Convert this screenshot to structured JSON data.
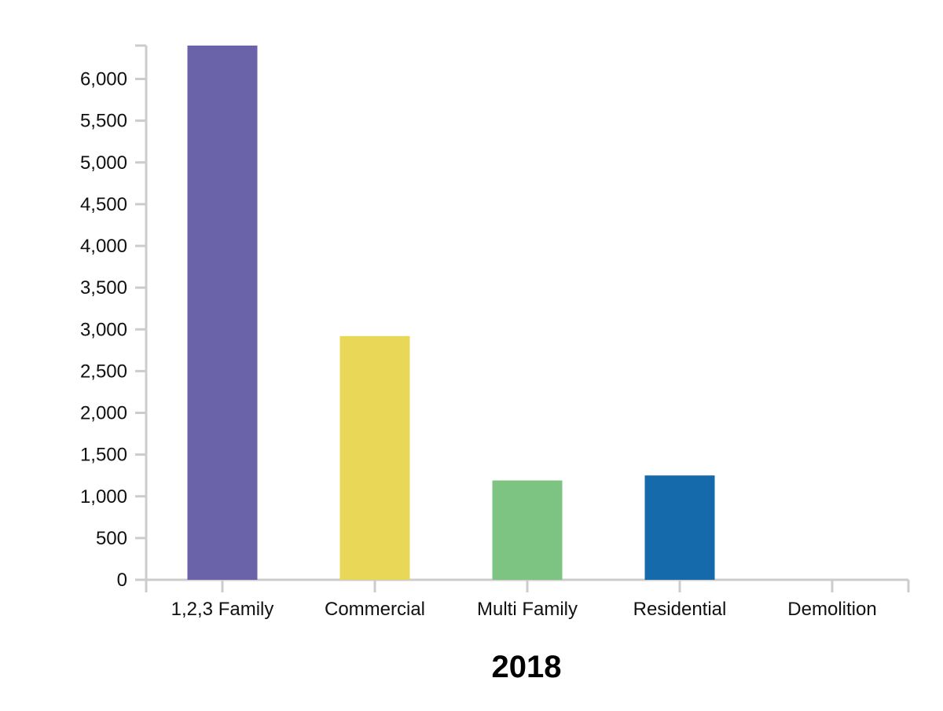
{
  "chart_data": {
    "type": "bar",
    "title": "",
    "xlabel": "2018",
    "ylabel": "",
    "categories": [
      "1,2,3 Family",
      "Commercial",
      "Multi Family",
      "Residential",
      "Demolition"
    ],
    "values": [
      6400,
      2920,
      1190,
      1250,
      0
    ],
    "colors": [
      "#6b63a9",
      "#e9d858",
      "#7dc483",
      "#156aac",
      "#7f7f7f"
    ],
    "ylim": [
      0,
      6400
    ],
    "yticks": [
      0,
      500,
      1000,
      1500,
      2000,
      2500,
      3000,
      3500,
      4000,
      4500,
      5000,
      5500,
      6000
    ],
    "ytick_labels": [
      "0",
      "500",
      "1,000",
      "1,500",
      "2,000",
      "2,500",
      "3,000",
      "3,500",
      "4,000",
      "4,500",
      "5,000",
      "5,500",
      "6,000"
    ],
    "grid": false,
    "legend": "none"
  }
}
